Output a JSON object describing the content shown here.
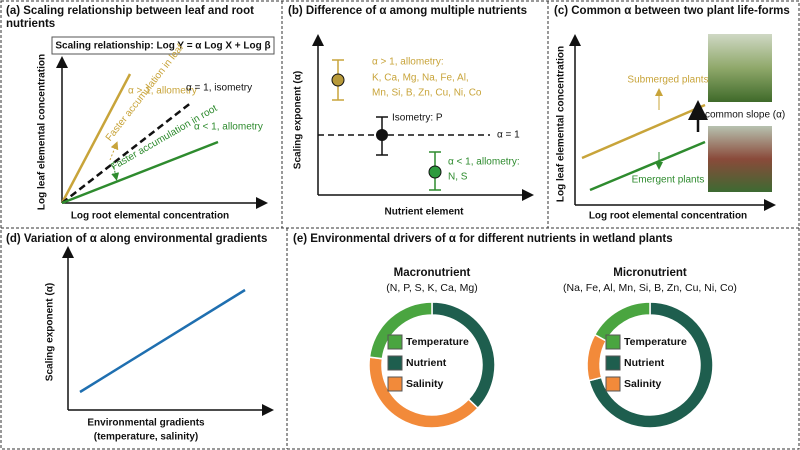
{
  "panel_a": {
    "title": "(a) Scaling relationship between leaf and root nutrients",
    "equation": "Scaling relationship: Log Y = α Log X + Log β",
    "allometry_high": "α > 1, allometry",
    "isometry": "α = 1, isometry",
    "allometry_low": "α < 1, allometry",
    "leaf_accumulation": "Faster accumulation in leaf",
    "root_accumulation": "Faster accumulation in root",
    "y_label": "Log leaf elemental concentration",
    "x_label": "Log root elemental concentration"
  },
  "panel_b": {
    "title": "(b) Difference of α among multiple nutrients",
    "high_label": "α > 1, allometry:",
    "high_elements": [
      "K, Ca, Mg, Na, Fe, Al,",
      "Mn, Si, B, Zn, Cu, Ni, Co"
    ],
    "isometry_label": "Isometry: P",
    "reference_label": "α = 1",
    "low_label": "α < 1, allometry:",
    "low_elements": "N, S",
    "y_label": "Scaling exponent (α)",
    "x_label": "Nutrient element"
  },
  "panel_c": {
    "title": "(c) Common α between two plant life-forms",
    "submerged": "Submerged plants",
    "common_slope": "common slope (α)",
    "emergent": "Emergent plants",
    "y_label": "Log leaf elemental concentration",
    "x_label": "Log root elemental concentration"
  },
  "panel_d": {
    "title": "(d) Variation of α along environmental gradients",
    "y_label": "Scaling exponent (α)",
    "x_label": "Environmental gradients",
    "x_sublabel": "(temperature, salinity)"
  },
  "panel_e": {
    "title": "(e) Environmental drivers of α for different nutrients in wetland plants",
    "categories": [
      "Temperature",
      "Nutrient",
      "Salinity"
    ],
    "colors": [
      "#4aa540",
      "#1e5e4e",
      "#f28a3a"
    ],
    "donuts": [
      {
        "title": "Macronutrient",
        "subtitle": "(N, P, S, K, Ca, Mg)",
        "values": [
          23,
          37,
          40
        ]
      },
      {
        "title": "Micronutrient",
        "subtitle": "(Na, Fe, Al, Mn, Si, B, Zn, Cu, Ni, Co)",
        "values": [
          17,
          71,
          12
        ]
      }
    ]
  }
}
